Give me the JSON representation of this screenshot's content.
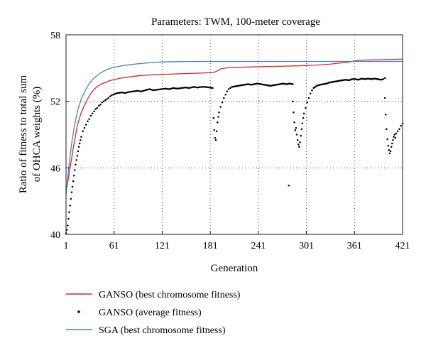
{
  "chart_data": {
    "type": "line",
    "title": "Parameters: TWM, 100-meter coverage",
    "xlabel": "Generation",
    "ylabel_line1": "Ratio of fitness to total sum",
    "ylabel_line2": "of OHCA weights (%)",
    "xlim": [
      1,
      421
    ],
    "ylim": [
      40,
      58
    ],
    "xticks": [
      "1",
      "61",
      "121",
      "181",
      "241",
      "301",
      "361",
      "421"
    ],
    "yticks": [
      "40",
      "46",
      "52",
      "58"
    ],
    "grid": true,
    "legend_position": "below-left",
    "series": [
      {
        "name": "GANSO (best chromosome fitness)",
        "style": "line",
        "color": "#d62a2a",
        "points": [
          [
            1,
            43.8
          ],
          [
            5,
            45.5
          ],
          [
            10,
            47.8
          ],
          [
            15,
            49.8
          ],
          [
            20,
            51.0
          ],
          [
            25,
            51.8
          ],
          [
            30,
            52.5
          ],
          [
            35,
            53.0
          ],
          [
            40,
            53.35
          ],
          [
            45,
            53.55
          ],
          [
            50,
            53.7
          ],
          [
            55,
            53.85
          ],
          [
            60,
            53.95
          ],
          [
            70,
            54.1
          ],
          [
            80,
            54.2
          ],
          [
            90,
            54.3
          ],
          [
            100,
            54.35
          ],
          [
            110,
            54.4
          ],
          [
            130,
            54.45
          ],
          [
            150,
            54.5
          ],
          [
            170,
            54.55
          ],
          [
            185,
            54.6
          ],
          [
            190,
            54.75
          ],
          [
            195,
            54.95
          ],
          [
            205,
            55.05
          ],
          [
            230,
            55.1
          ],
          [
            260,
            55.15
          ],
          [
            290,
            55.2
          ],
          [
            310,
            55.25
          ],
          [
            330,
            55.35
          ],
          [
            355,
            55.55
          ],
          [
            365,
            55.7
          ],
          [
            390,
            55.75
          ],
          [
            421,
            55.8
          ]
        ]
      },
      {
        "name": "GANSO (average fitness)",
        "style": "dots",
        "color": "#000000",
        "segments": [
          [
            [
              1,
              40.1
            ],
            [
              2,
              40.4
            ],
            [
              3,
              40.8
            ],
            [
              4,
              41.4
            ],
            [
              5,
              42.0
            ],
            [
              6,
              42.6
            ],
            [
              7,
              43.2
            ],
            [
              8,
              43.8
            ],
            [
              9,
              44.3
            ],
            [
              10,
              44.8
            ],
            [
              11,
              45.3
            ],
            [
              12,
              45.8
            ],
            [
              13,
              46.3
            ],
            [
              14,
              46.7
            ],
            [
              15,
              47.1
            ],
            [
              16,
              47.5
            ],
            [
              17,
              47.9
            ],
            [
              18,
              48.2
            ],
            [
              19,
              48.5
            ],
            [
              20,
              48.8
            ],
            [
              22,
              49.3
            ],
            [
              24,
              49.6
            ],
            [
              26,
              49.9
            ],
            [
              28,
              50.2
            ],
            [
              30,
              50.4
            ],
            [
              32,
              50.7
            ],
            [
              34,
              50.9
            ],
            [
              36,
              51.1
            ],
            [
              38,
              51.3
            ],
            [
              40,
              51.4
            ],
            [
              42,
              51.6
            ],
            [
              44,
              51.7
            ],
            [
              46,
              51.9
            ],
            [
              48,
              52.0
            ],
            [
              50,
              52.1
            ],
            [
              52,
              52.2
            ],
            [
              54,
              52.3
            ],
            [
              56,
              52.45
            ],
            [
              58,
              52.55
            ],
            [
              60,
              52.6
            ],
            [
              63,
              52.7
            ],
            [
              66,
              52.75
            ],
            [
              70,
              52.8
            ],
            [
              75,
              52.75
            ],
            [
              80,
              52.85
            ],
            [
              85,
              52.9
            ],
            [
              90,
              52.95
            ],
            [
              95,
              52.9
            ],
            [
              100,
              53.0
            ],
            [
              105,
              53.1
            ],
            [
              110,
              53.0
            ],
            [
              115,
              53.05
            ],
            [
              120,
              53.1
            ],
            [
              125,
              53.15
            ],
            [
              130,
              53.1
            ],
            [
              135,
              53.2
            ],
            [
              140,
              53.15
            ],
            [
              145,
              53.2
            ],
            [
              150,
              53.25
            ],
            [
              155,
              53.2
            ],
            [
              160,
              53.3
            ],
            [
              165,
              53.25
            ],
            [
              170,
              53.3
            ],
            [
              175,
              53.3
            ],
            [
              180,
              53.25
            ],
            [
              184,
              53.2
            ]
          ],
          [
            [
              185,
              50.5
            ],
            [
              186,
              49.4
            ],
            [
              187,
              48.7
            ],
            [
              188,
              48.5
            ],
            [
              189,
              49.3
            ],
            [
              190,
              50.1
            ],
            [
              191,
              50.6
            ],
            [
              192,
              51.0
            ],
            [
              194,
              51.5
            ],
            [
              196,
              51.9
            ],
            [
              198,
              52.3
            ],
            [
              200,
              52.6
            ],
            [
              202,
              52.9
            ],
            [
              204,
              53.1
            ],
            [
              206,
              53.2
            ],
            [
              208,
              53.3
            ],
            [
              212,
              53.35
            ],
            [
              216,
              53.4
            ],
            [
              220,
              53.45
            ],
            [
              224,
              53.5
            ],
            [
              228,
              53.55
            ],
            [
              232,
              53.5
            ],
            [
              236,
              53.55
            ],
            [
              240,
              53.6
            ],
            [
              244,
              53.55
            ],
            [
              248,
              53.5
            ],
            [
              252,
              53.45
            ],
            [
              256,
              53.4
            ],
            [
              260,
              53.45
            ],
            [
              264,
              53.5
            ],
            [
              268,
              53.55
            ],
            [
              272,
              53.6
            ],
            [
              276,
              53.55
            ],
            [
              280,
              53.6
            ],
            [
              284,
              53.55
            ]
          ],
          [
            [
              279,
              44.4
            ]
          ],
          [
            [
              284,
              52.0
            ],
            [
              285,
              51.0
            ],
            [
              286,
              50.1
            ],
            [
              287,
              49.4
            ],
            [
              288,
              49.6
            ],
            [
              289,
              49.0
            ],
            [
              290,
              48.5
            ],
            [
              291,
              48.1
            ],
            [
              292,
              47.9
            ],
            [
              293,
              48.3
            ],
            [
              294,
              48.9
            ],
            [
              295,
              49.5
            ],
            [
              296,
              50.0
            ],
            [
              297,
              50.5
            ],
            [
              298,
              50.9
            ],
            [
              300,
              51.4
            ],
            [
              302,
              51.9
            ],
            [
              304,
              52.3
            ],
            [
              306,
              52.7
            ],
            [
              308,
              53.0
            ],
            [
              310,
              53.2
            ],
            [
              314,
              53.4
            ],
            [
              318,
              53.5
            ],
            [
              322,
              53.55
            ],
            [
              326,
              53.6
            ],
            [
              330,
              53.7
            ],
            [
              334,
              53.75
            ],
            [
              338,
              53.8
            ],
            [
              342,
              53.85
            ],
            [
              346,
              53.9
            ],
            [
              350,
              53.95
            ],
            [
              354,
              53.9
            ],
            [
              358,
              54.0
            ],
            [
              362,
              54.0
            ],
            [
              366,
              53.95
            ],
            [
              370,
              54.05
            ],
            [
              374,
              54.0
            ],
            [
              378,
              54.05
            ],
            [
              382,
              54.0
            ],
            [
              386,
              54.05
            ],
            [
              390,
              54.0
            ],
            [
              394,
              53.95
            ],
            [
              397,
              54.0
            ],
            [
              399,
              54.1
            ]
          ],
          [
            [
              399,
              52.3
            ],
            [
              400,
              50.8
            ],
            [
              401,
              49.5
            ],
            [
              402,
              48.6
            ],
            [
              403,
              48.0
            ],
            [
              404,
              47.6
            ],
            [
              405,
              47.3
            ],
            [
              406,
              47.5
            ],
            [
              407,
              47.9
            ],
            [
              408,
              48.2
            ],
            [
              409,
              48.5
            ],
            [
              410,
              48.8
            ],
            [
              411,
              49.0
            ],
            [
              412,
              48.7
            ],
            [
              413,
              49.1
            ],
            [
              415,
              49.3
            ],
            [
              417,
              49.5
            ],
            [
              419,
              49.8
            ],
            [
              421,
              50.0
            ]
          ]
        ]
      },
      {
        "name": "SGA (best chromosome fitness)",
        "style": "line",
        "color": "#4a80c0",
        "points": [
          [
            1,
            43.6
          ],
          [
            4,
            45.8
          ],
          [
            8,
            48.2
          ],
          [
            12,
            50.0
          ],
          [
            16,
            51.3
          ],
          [
            20,
            52.2
          ],
          [
            25,
            53.0
          ],
          [
            30,
            53.6
          ],
          [
            35,
            54.05
          ],
          [
            40,
            54.35
          ],
          [
            45,
            54.6
          ],
          [
            50,
            54.8
          ],
          [
            55,
            54.95
          ],
          [
            60,
            55.05
          ],
          [
            70,
            55.2
          ],
          [
            80,
            55.3
          ],
          [
            90,
            55.38
          ],
          [
            100,
            55.45
          ],
          [
            110,
            55.5
          ],
          [
            120,
            55.55
          ],
          [
            140,
            55.58
          ],
          [
            170,
            55.6
          ],
          [
            220,
            55.6
          ],
          [
            280,
            55.6
          ],
          [
            340,
            55.6
          ],
          [
            400,
            55.6
          ],
          [
            421,
            55.6
          ]
        ]
      }
    ]
  }
}
